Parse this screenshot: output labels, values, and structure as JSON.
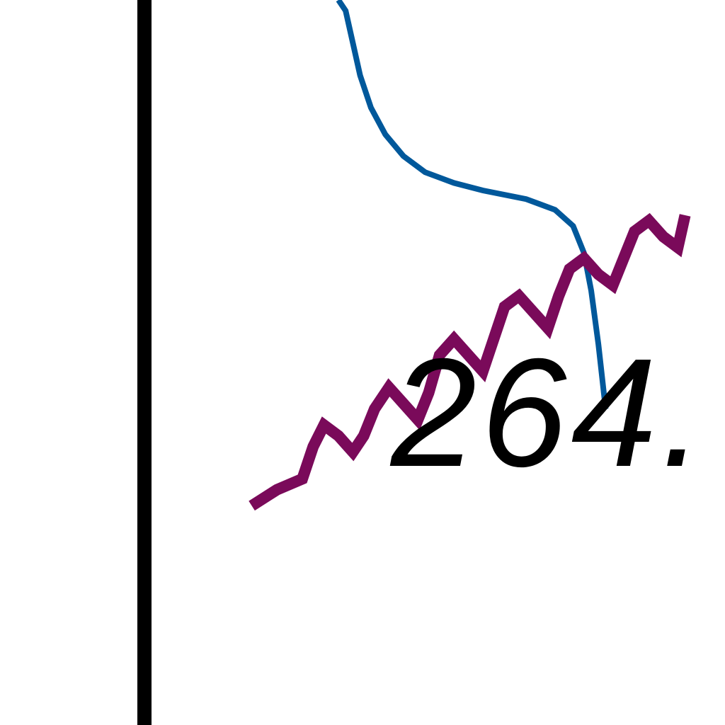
{
  "chart_data": {
    "type": "line",
    "title": "",
    "xlabel": "",
    "ylabel": "",
    "annotations": [
      {
        "text": "264."
      }
    ],
    "series": [
      {
        "color": "#00589b",
        "points": [
          [
            0.0,
            100.0
          ],
          [
            1.0,
            99.0
          ],
          [
            2.0,
            96.0
          ],
          [
            3.0,
            93.0
          ],
          [
            4.5,
            90.0
          ],
          [
            6.5,
            87.5
          ],
          [
            9.0,
            85.5
          ],
          [
            12.0,
            84.0
          ],
          [
            16.0,
            83.0
          ],
          [
            20.0,
            82.3
          ],
          [
            26.0,
            81.5
          ],
          [
            30.0,
            80.5
          ],
          [
            32.5,
            79.0
          ],
          [
            34.0,
            76.5
          ],
          [
            35.0,
            73.0
          ],
          [
            36.0,
            68.0
          ],
          [
            37.0,
            62.0
          ]
        ]
      },
      {
        "color": "#7a0a5a",
        "points": [
          [
            -12.0,
            53.0
          ],
          [
            -8.5,
            54.5
          ],
          [
            -5.0,
            55.5
          ],
          [
            -3.5,
            58.5
          ],
          [
            -2.0,
            60.5
          ],
          [
            0.0,
            59.5
          ],
          [
            2.0,
            58.0
          ],
          [
            3.5,
            59.5
          ],
          [
            5.0,
            62.0
          ],
          [
            7.0,
            64.0
          ],
          [
            9.0,
            62.5
          ],
          [
            11.0,
            61.0
          ],
          [
            12.5,
            63.5
          ],
          [
            14.0,
            67.0
          ],
          [
            16.0,
            68.5
          ],
          [
            18.0,
            67.0
          ],
          [
            20.0,
            65.5
          ],
          [
            21.5,
            68.5
          ],
          [
            23.0,
            71.5
          ],
          [
            25.0,
            72.5
          ],
          [
            27.0,
            71.0
          ],
          [
            29.0,
            69.5
          ],
          [
            30.5,
            72.5
          ],
          [
            32.0,
            75.0
          ],
          [
            34.0,
            76.0
          ],
          [
            36.0,
            74.5
          ],
          [
            38.0,
            73.5
          ],
          [
            39.5,
            76.0
          ],
          [
            41.0,
            78.5
          ],
          [
            43.0,
            79.5
          ],
          [
            45.0,
            78.0
          ],
          [
            47.0,
            77.0
          ],
          [
            48.0,
            80.0
          ]
        ]
      }
    ]
  }
}
